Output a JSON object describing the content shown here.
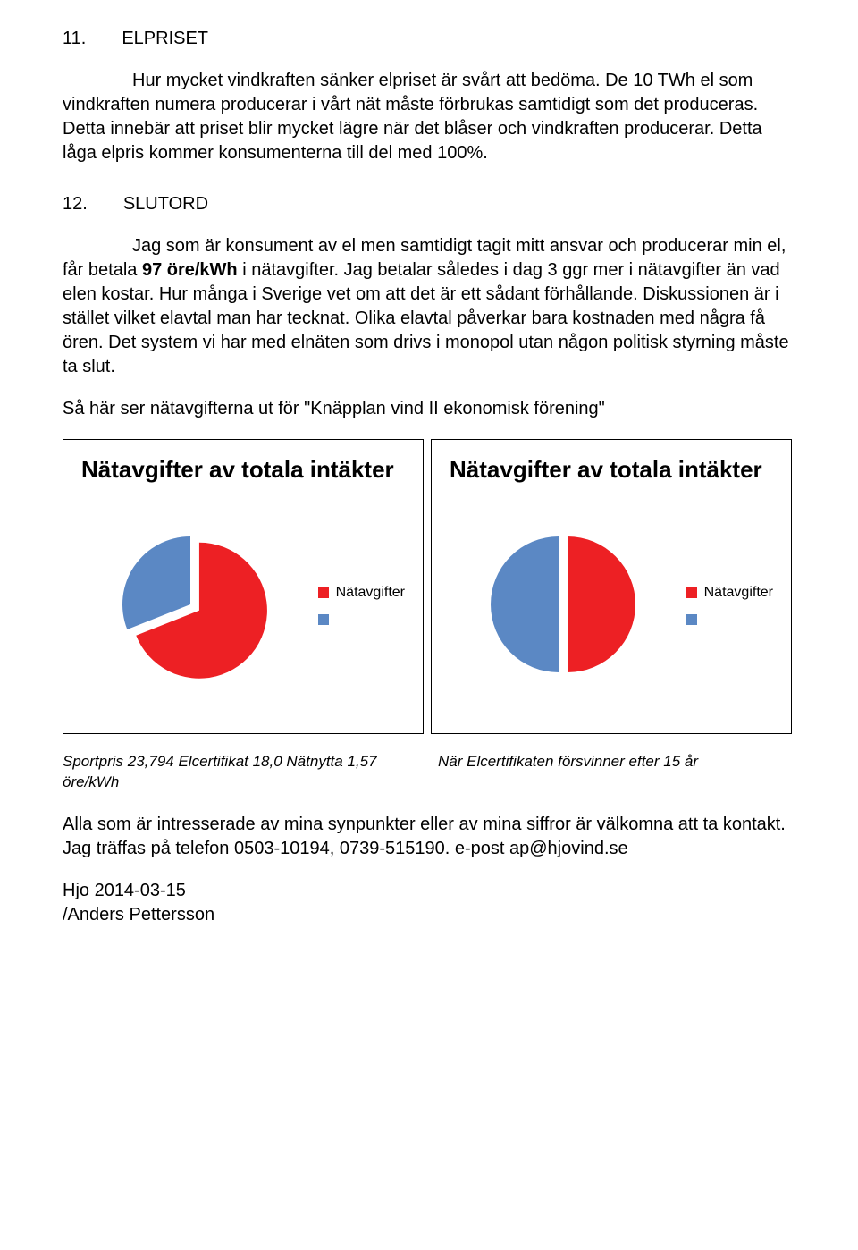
{
  "section11": {
    "num": "11.",
    "title": "ELPRISET",
    "p1": "Hur mycket vindkraften sänker elpriset är svårt att bedöma. De 10 TWh el som vindkraften numera producerar i vårt nät måste förbrukas samtidigt som det produceras. Detta innebär att priset blir mycket lägre när det blåser och vindkraften producerar. Detta låga elpris kommer konsumenterna till del med 100%."
  },
  "section12": {
    "num": "12.",
    "title": "SLUTORD",
    "p1_before": "Jag som är konsument av el men samtidigt tagit mitt ansvar och producerar min el, får betala ",
    "p1_bold": "97 öre/kWh",
    "p1_after": " i nätavgifter. Jag betalar således i dag 3 ggr mer i nätavgifter än vad elen kostar. Hur många i Sverige vet om att det är ett sådant förhållande. Diskussionen är i stället vilket elavtal man har tecknat. Olika elavtal påverkar bara kostnaden med några få ören. Det system vi har med elnäten som drivs i monopol utan någon politisk styrning måste ta slut.",
    "p2": "Så här ser nätavgifterna ut för \"Knäpplan vind II ekonomisk förening\""
  },
  "chart1": {
    "type": "pie",
    "title": "Nätavgifter av totala intäkter",
    "legend": [
      "Nätavgifter",
      ""
    ],
    "slices": [
      {
        "value": 69,
        "color": "#ed2024",
        "label": "Nätavgifter"
      },
      {
        "value": 31,
        "color": "#5b88c4",
        "label": ""
      }
    ],
    "pulled_slice_index": 0,
    "pull_distance": 12,
    "radius": 76,
    "title_fontsize": 26,
    "legend_fontsize": 16,
    "background_color": "#ffffff",
    "border_color": "#000000",
    "legend_colors": [
      "#ed2024",
      "#5b88c4"
    ]
  },
  "chart2": {
    "type": "pie",
    "title": "Nätavgifter av totala intäkter",
    "legend": [
      "Nätavgifter",
      ""
    ],
    "slices": [
      {
        "value": 50,
        "color": "#ed2024",
        "label": "Nätavgifter"
      },
      {
        "value": 50,
        "color": "#5b88c4",
        "label": ""
      }
    ],
    "pulled_slice_index": 0,
    "pull_distance": 10,
    "radius": 76,
    "title_fontsize": 26,
    "legend_fontsize": 16,
    "background_color": "#ffffff",
    "border_color": "#000000",
    "legend_colors": [
      "#ed2024",
      "#5b88c4"
    ]
  },
  "captions": {
    "left": "Sportpris 23,794 Elcertifikat 18,0 Nätnytta 1,57 öre/kWh",
    "right": "När Elcertifikaten försvinner efter 15 år"
  },
  "closing": {
    "p1": "Alla som är intresserade av mina synpunkter eller av mina siffror är välkomna att ta kontakt. Jag träffas på telefon 0503-10194, 0739-515190. e-post ap@hjovind.se",
    "date": "Hjo 2014-03-15",
    "author": "/Anders Pettersson"
  }
}
